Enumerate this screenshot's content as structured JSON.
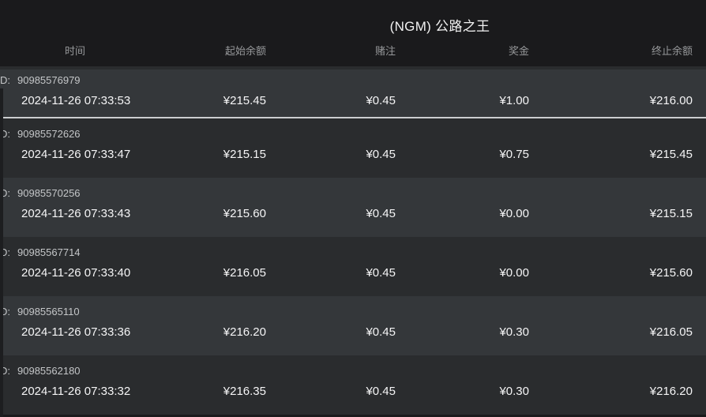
{
  "header": {
    "title": "(NGM) 公路之王"
  },
  "table": {
    "columns": [
      "时间",
      "起始余额",
      "赌注",
      "奖金",
      "终止余额"
    ],
    "id_label": "D:",
    "rows": [
      {
        "id": "90985576979",
        "time": "2024-11-26 07:33:53",
        "start_balance": "¥215.45",
        "bet": "¥0.45",
        "prize": "¥1.00",
        "end_balance": "¥216.00"
      },
      {
        "id": "90985572626",
        "time": "2024-11-26 07:33:47",
        "start_balance": "¥215.15",
        "bet": "¥0.45",
        "prize": "¥0.75",
        "end_balance": "¥215.45"
      },
      {
        "id": "90985570256",
        "time": "2024-11-26 07:33:43",
        "start_balance": "¥215.60",
        "bet": "¥0.45",
        "prize": "¥0.00",
        "end_balance": "¥215.15"
      },
      {
        "id": "90985567714",
        "time": "2024-11-26 07:33:40",
        "start_balance": "¥216.05",
        "bet": "¥0.45",
        "prize": "¥0.00",
        "end_balance": "¥215.60"
      },
      {
        "id": "90985565110",
        "time": "2024-11-26 07:33:36",
        "start_balance": "¥216.20",
        "bet": "¥0.45",
        "prize": "¥0.30",
        "end_balance": "¥216.05"
      },
      {
        "id": "90985562180",
        "time": "2024-11-26 07:33:32",
        "start_balance": "¥216.35",
        "bet": "¥0.45",
        "prize": "¥0.30",
        "end_balance": "¥216.20"
      }
    ]
  },
  "colors": {
    "background": "#1a1a1c",
    "row_light": "#34373a",
    "row_dark": "#2a2c2e",
    "divider_bright": "#cbcdcf",
    "text_primary": "#f5f5f6",
    "text_secondary": "#96989a"
  }
}
